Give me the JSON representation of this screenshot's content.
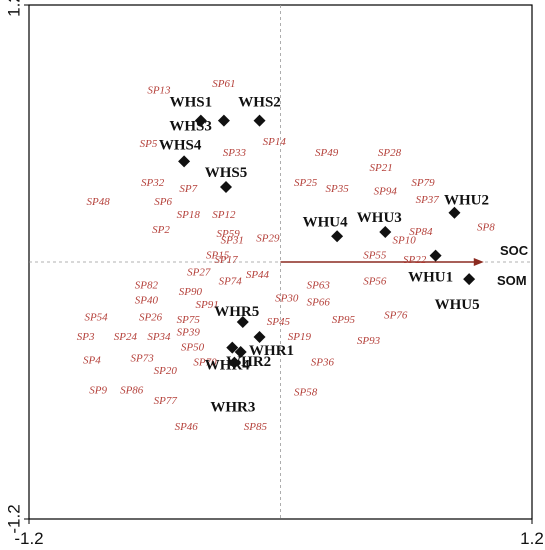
{
  "chart_data": {
    "type": "scatter",
    "title": "",
    "xlabel": "",
    "ylabel": "",
    "xlim": [
      -1.2,
      1.2
    ],
    "ylim": [
      -1.2,
      1.2
    ],
    "grid": false,
    "x_ticks": [
      "-1.2",
      "1.2"
    ],
    "y_ticks": [
      "1.2",
      "-1.2"
    ],
    "sites": [
      {
        "name": "WHS1",
        "x": -0.38,
        "y": 0.66
      },
      {
        "name": "WHS2",
        "x": -0.1,
        "y": 0.66
      },
      {
        "name": "WHS3",
        "x": -0.27,
        "y": 0.66
      },
      {
        "name": "WHS4",
        "x": -0.46,
        "y": 0.47
      },
      {
        "name": "WHS5",
        "x": -0.26,
        "y": 0.35
      },
      {
        "name": "WHU1",
        "x": 0.74,
        "y": 0.03
      },
      {
        "name": "WHU2",
        "x": 0.83,
        "y": 0.23
      },
      {
        "name": "WHU3",
        "x": 0.5,
        "y": 0.14
      },
      {
        "name": "WHU4",
        "x": 0.27,
        "y": 0.12
      },
      {
        "name": "WHU5",
        "x": 0.9,
        "y": -0.08
      },
      {
        "name": "WHR1",
        "x": -0.1,
        "y": -0.35
      },
      {
        "name": "WHR2",
        "x": -0.19,
        "y": -0.42
      },
      {
        "name": "WHR3",
        "x": -0.22,
        "y": -0.47
      },
      {
        "name": "WHR4",
        "x": -0.23,
        "y": -0.4
      },
      {
        "name": "WHR5",
        "x": -0.18,
        "y": -0.28
      }
    ],
    "species": [
      {
        "name": "SP13",
        "x": -0.58,
        "y": 0.8
      },
      {
        "name": "SP61",
        "x": -0.27,
        "y": 0.83
      },
      {
        "name": "SP5",
        "x": -0.63,
        "y": 0.55
      },
      {
        "name": "SP33",
        "x": -0.22,
        "y": 0.51
      },
      {
        "name": "SP14",
        "x": -0.03,
        "y": 0.56
      },
      {
        "name": "SP49",
        "x": 0.22,
        "y": 0.51
      },
      {
        "name": "SP28",
        "x": 0.52,
        "y": 0.51
      },
      {
        "name": "SP21",
        "x": 0.48,
        "y": 0.44
      },
      {
        "name": "SP32",
        "x": -0.61,
        "y": 0.37
      },
      {
        "name": "SP7",
        "x": -0.44,
        "y": 0.34
      },
      {
        "name": "SP25",
        "x": 0.12,
        "y": 0.37
      },
      {
        "name": "SP35",
        "x": 0.27,
        "y": 0.34
      },
      {
        "name": "SP94",
        "x": 0.5,
        "y": 0.33
      },
      {
        "name": "SP79",
        "x": 0.68,
        "y": 0.37
      },
      {
        "name": "SP48",
        "x": -0.87,
        "y": 0.28
      },
      {
        "name": "SP6",
        "x": -0.56,
        "y": 0.28
      },
      {
        "name": "SP37",
        "x": 0.7,
        "y": 0.29
      },
      {
        "name": "SP18",
        "x": -0.44,
        "y": 0.22
      },
      {
        "name": "SP12",
        "x": -0.27,
        "y": 0.22
      },
      {
        "name": "SP8",
        "x": 0.98,
        "y": 0.16
      },
      {
        "name": "SP2",
        "x": -0.57,
        "y": 0.15
      },
      {
        "name": "SP84",
        "x": 0.67,
        "y": 0.14
      },
      {
        "name": "SP59",
        "x": -0.25,
        "y": 0.13
      },
      {
        "name": "SP31",
        "x": -0.23,
        "y": 0.1
      },
      {
        "name": "SP29",
        "x": -0.06,
        "y": 0.11
      },
      {
        "name": "SP10",
        "x": 0.59,
        "y": 0.1
      },
      {
        "name": "SP15",
        "x": -0.3,
        "y": 0.03
      },
      {
        "name": "SP17",
        "x": -0.26,
        "y": 0.01
      },
      {
        "name": "SP55",
        "x": 0.45,
        "y": 0.03
      },
      {
        "name": "SP22",
        "x": 0.64,
        "y": 0.01
      },
      {
        "name": "SP27",
        "x": -0.39,
        "y": -0.05
      },
      {
        "name": "SP74",
        "x": -0.24,
        "y": -0.09
      },
      {
        "name": "SP44",
        "x": -0.11,
        "y": -0.06
      },
      {
        "name": "SP56",
        "x": 0.45,
        "y": -0.09
      },
      {
        "name": "SP82",
        "x": -0.64,
        "y": -0.11
      },
      {
        "name": "SP90",
        "x": -0.43,
        "y": -0.14
      },
      {
        "name": "SP63",
        "x": 0.18,
        "y": -0.11
      },
      {
        "name": "SP40",
        "x": -0.64,
        "y": -0.18
      },
      {
        "name": "SP91",
        "x": -0.35,
        "y": -0.2
      },
      {
        "name": "SP30",
        "x": 0.03,
        "y": -0.17
      },
      {
        "name": "SP66",
        "x": 0.18,
        "y": -0.19
      },
      {
        "name": "SP54",
        "x": -0.88,
        "y": -0.26
      },
      {
        "name": "SP26",
        "x": -0.62,
        "y": -0.26
      },
      {
        "name": "SP75",
        "x": -0.44,
        "y": -0.27
      },
      {
        "name": "SP45",
        "x": -0.01,
        "y": -0.28
      },
      {
        "name": "SP95",
        "x": 0.3,
        "y": -0.27
      },
      {
        "name": "SP76",
        "x": 0.55,
        "y": -0.25
      },
      {
        "name": "SP3",
        "x": -0.93,
        "y": -0.35
      },
      {
        "name": "SP24",
        "x": -0.74,
        "y": -0.35
      },
      {
        "name": "SP34",
        "x": -0.58,
        "y": -0.35
      },
      {
        "name": "SP39",
        "x": -0.44,
        "y": -0.33
      },
      {
        "name": "SP19",
        "x": 0.09,
        "y": -0.35
      },
      {
        "name": "SP93",
        "x": 0.42,
        "y": -0.37
      },
      {
        "name": "SP50",
        "x": -0.42,
        "y": -0.4
      },
      {
        "name": "SP4",
        "x": -0.9,
        "y": -0.46
      },
      {
        "name": "SP73",
        "x": -0.66,
        "y": -0.45
      },
      {
        "name": "SP70",
        "x": -0.36,
        "y": -0.47
      },
      {
        "name": "SP36",
        "x": 0.2,
        "y": -0.47
      },
      {
        "name": "SP20",
        "x": -0.55,
        "y": -0.51
      },
      {
        "name": "SP9",
        "x": -0.87,
        "y": -0.6
      },
      {
        "name": "SP86",
        "x": -0.71,
        "y": -0.6
      },
      {
        "name": "SP58",
        "x": 0.12,
        "y": -0.61
      },
      {
        "name": "SP77",
        "x": -0.55,
        "y": -0.65
      },
      {
        "name": "SP46",
        "x": -0.45,
        "y": -0.77
      },
      {
        "name": "SP85",
        "x": -0.12,
        "y": -0.77
      }
    ],
    "vectors": [
      {
        "name": "SOC",
        "x": 0.97,
        "y": 0.0
      },
      {
        "name": "SOM",
        "x": 0.97,
        "y": 0.0
      }
    ],
    "colors": {
      "axis": "#000000",
      "zero_lines": "#999999",
      "species_text": "#b5423c",
      "site_marker": "#111111",
      "vector": "#8b2a20"
    }
  }
}
